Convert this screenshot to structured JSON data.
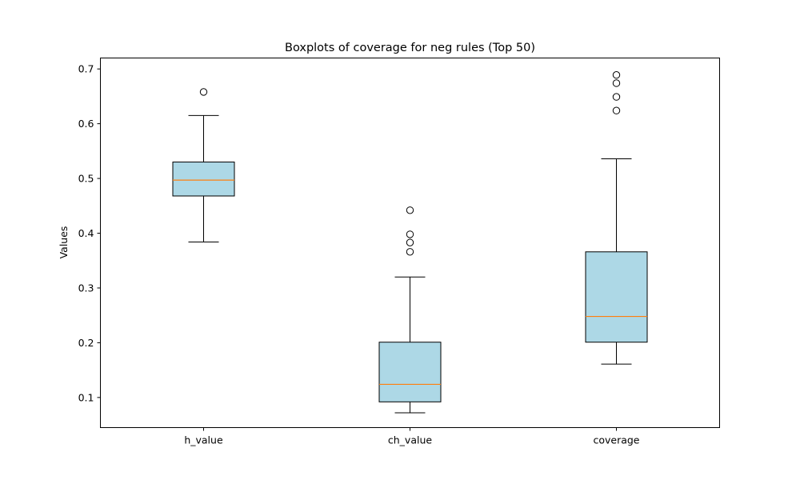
{
  "chart_data": {
    "type": "boxplot",
    "title": "Boxplots of coverage for neg rules (Top 50)",
    "xlabel": "",
    "ylabel": "Values",
    "ylim": [
      0.045,
      0.72
    ],
    "yticks": [
      0.1,
      0.2,
      0.3,
      0.4,
      0.5,
      0.6,
      0.7
    ],
    "ytick_labels": [
      "0.1",
      "0.2",
      "0.3",
      "0.4",
      "0.5",
      "0.6",
      "0.7"
    ],
    "categories": [
      "h_value",
      "ch_value",
      "coverage"
    ],
    "boxes": [
      {
        "label": "h_value",
        "whisker_low": 0.384,
        "q1": 0.468,
        "median": 0.497,
        "q3": 0.53,
        "whisker_high": 0.615,
        "outliers": [
          0.658
        ]
      },
      {
        "label": "ch_value",
        "whisker_low": 0.072,
        "q1": 0.092,
        "median": 0.124,
        "q3": 0.201,
        "whisker_high": 0.32,
        "outliers": [
          0.366,
          0.383,
          0.398,
          0.442
        ]
      },
      {
        "label": "coverage",
        "whisker_low": 0.161,
        "q1": 0.201,
        "median": 0.248,
        "q3": 0.366,
        "whisker_high": 0.536,
        "outliers": [
          0.624,
          0.649,
          0.674,
          0.689
        ]
      }
    ],
    "grid": false,
    "colors": {
      "box_fill": "#add8e6",
      "median": "#ff7f0e",
      "line": "#000000"
    }
  }
}
